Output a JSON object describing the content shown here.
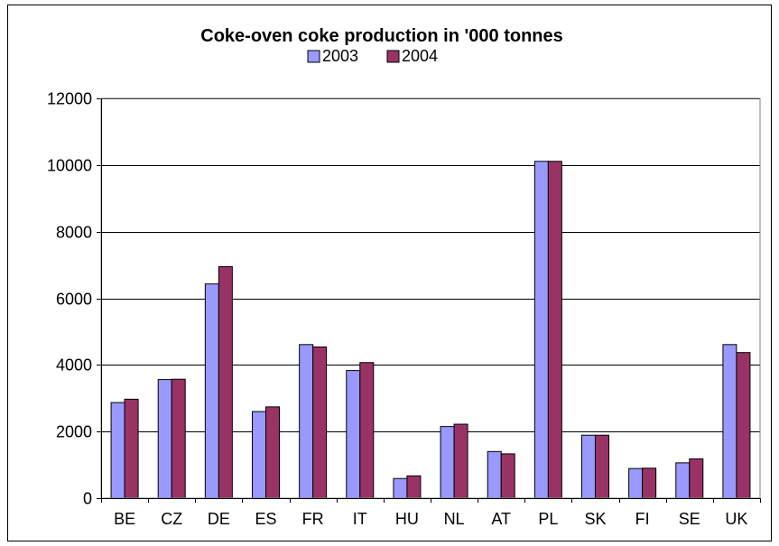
{
  "chart_data": {
    "type": "bar",
    "title": "Coke-oven coke production in '000 tonnes",
    "xlabel": "",
    "ylabel": "",
    "categories": [
      "BE",
      "CZ",
      "DE",
      "ES",
      "FR",
      "IT",
      "HU",
      "NL",
      "AT",
      "PL",
      "SK",
      "FI",
      "SE",
      "UK"
    ],
    "series": [
      {
        "name": "2003",
        "color": "#9999ff",
        "values": [
          2870,
          3560,
          6430,
          2600,
          4610,
          3830,
          590,
          2150,
          1400,
          10110,
          1890,
          890,
          1060,
          4610
        ]
      },
      {
        "name": "2004",
        "color": "#993366",
        "values": [
          2970,
          3570,
          6950,
          2740,
          4540,
          4070,
          670,
          2220,
          1330,
          10110,
          1890,
          900,
          1180,
          4370
        ]
      }
    ],
    "ylim": [
      0,
      12000
    ],
    "yticks": [
      0,
      2000,
      4000,
      6000,
      8000,
      10000,
      12000
    ],
    "grid": true,
    "legend": "top-center"
  }
}
